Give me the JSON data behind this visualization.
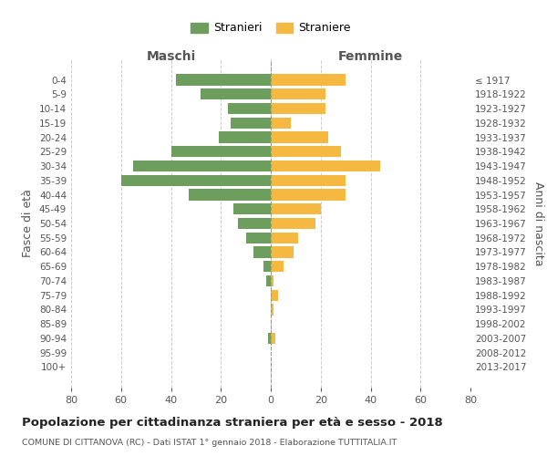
{
  "age_groups": [
    "0-4",
    "5-9",
    "10-14",
    "15-19",
    "20-24",
    "25-29",
    "30-34",
    "35-39",
    "40-44",
    "45-49",
    "50-54",
    "55-59",
    "60-64",
    "65-69",
    "70-74",
    "75-79",
    "80-84",
    "85-89",
    "90-94",
    "95-99",
    "100+"
  ],
  "birth_years": [
    "2013-2017",
    "2008-2012",
    "2003-2007",
    "1998-2002",
    "1993-1997",
    "1988-1992",
    "1983-1987",
    "1978-1982",
    "1973-1977",
    "1968-1972",
    "1963-1967",
    "1958-1962",
    "1953-1957",
    "1948-1952",
    "1943-1947",
    "1938-1942",
    "1933-1937",
    "1928-1932",
    "1923-1927",
    "1918-1922",
    "≤ 1917"
  ],
  "maschi": [
    38,
    28,
    17,
    16,
    21,
    40,
    55,
    60,
    33,
    15,
    13,
    10,
    7,
    3,
    2,
    0,
    0,
    0,
    1,
    0,
    0
  ],
  "femmine": [
    30,
    22,
    22,
    8,
    23,
    28,
    44,
    30,
    30,
    20,
    18,
    11,
    9,
    5,
    1,
    3,
    1,
    0,
    2,
    0,
    0
  ],
  "color_maschi": "#6d9e5e",
  "color_femmine": "#f5b942",
  "background_color": "#ffffff",
  "grid_color": "#cccccc",
  "title": "Popolazione per cittadinanza straniera per età e sesso - 2018",
  "subtitle": "COMUNE DI CITTANOVA (RC) - Dati ISTAT 1° gennaio 2018 - Elaborazione TUTTITALIA.IT",
  "xlabel_left": "Maschi",
  "xlabel_right": "Femmine",
  "ylabel_left": "Fasce di età",
  "ylabel_right": "Anni di nascita",
  "legend_stranieri": "Stranieri",
  "legend_straniere": "Straniere",
  "xlim": 80
}
